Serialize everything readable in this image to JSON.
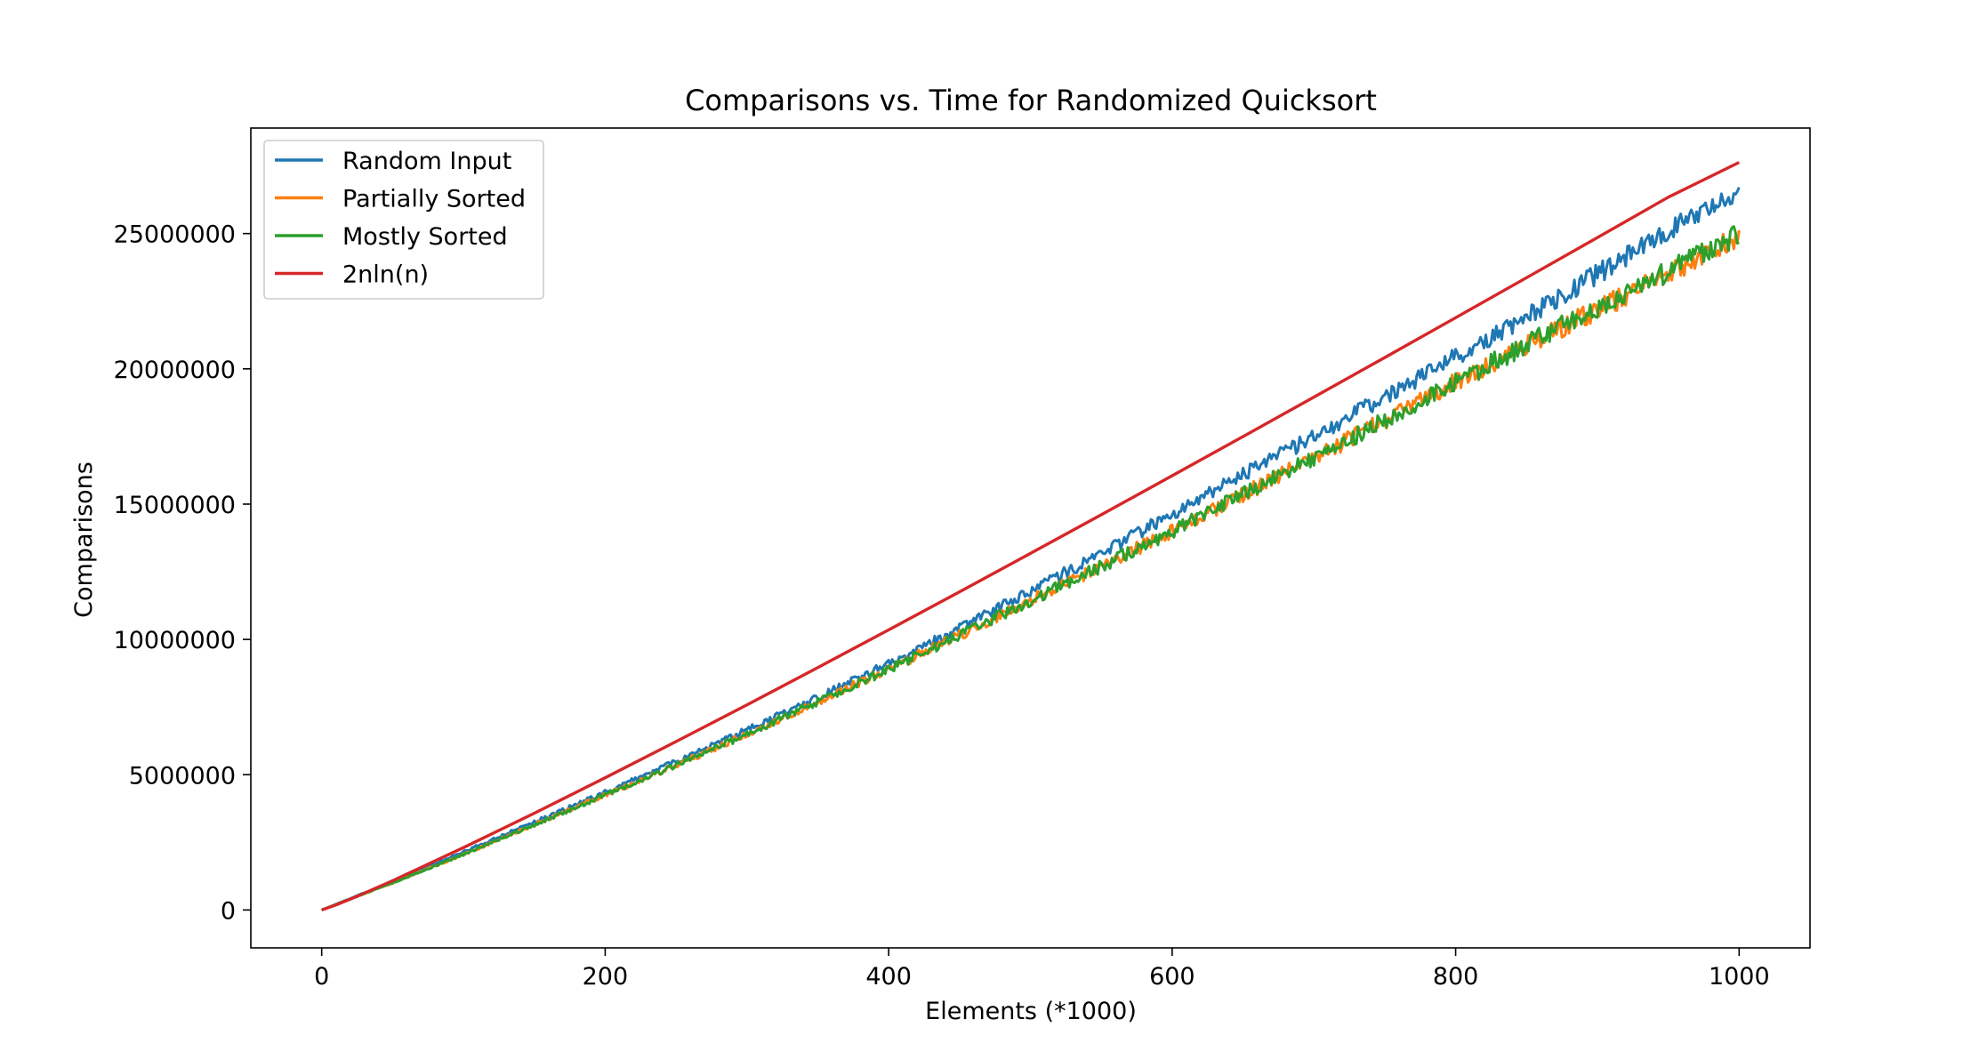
{
  "chart_data": {
    "type": "line",
    "title": "Comparisons vs. Time for Randomized Quicksort",
    "xlabel": "Elements (*1000)",
    "ylabel": "Comparisons",
    "xlim": [
      -50,
      1050
    ],
    "ylim": [
      -1400000,
      28900000
    ],
    "xticks": [
      0,
      200,
      400,
      600,
      800,
      1000
    ],
    "xtick_labels": [
      "0",
      "200",
      "400",
      "600",
      "800",
      "1000"
    ],
    "yticks": [
      0,
      5000000,
      10000000,
      15000000,
      20000000,
      25000000
    ],
    "ytick_labels": [
      "0",
      "5000000",
      "10000000",
      "15000000",
      "20000000",
      "25000000"
    ],
    "grid": false,
    "legend_position": "top-left",
    "series": [
      {
        "name": "Random Input",
        "color": "#1f77b4",
        "x": [
          0,
          50,
          100,
          150,
          200,
          250,
          300,
          350,
          400,
          450,
          500,
          550,
          600,
          650,
          700,
          750,
          800,
          850,
          900,
          950,
          1000
        ],
        "y": [
          0,
          1050000,
          2150000,
          3250000,
          4350000,
          5500000,
          6650000,
          7850000,
          9100000,
          10400000,
          11800000,
          13150000,
          14650000,
          16100000,
          17500000,
          18950000,
          20450000,
          21900000,
          23500000,
          25100000,
          26650000
        ]
      },
      {
        "name": "Partially Sorted",
        "color": "#ff7f0e",
        "x": [
          0,
          50,
          100,
          150,
          200,
          250,
          300,
          350,
          400,
          450,
          500,
          550,
          600,
          650,
          700,
          750,
          800,
          850,
          900,
          950,
          1000
        ],
        "y": [
          0,
          1000000,
          2050000,
          3150000,
          4250000,
          5350000,
          6500000,
          7700000,
          8900000,
          10150000,
          11450000,
          12700000,
          14000000,
          15350000,
          16700000,
          18100000,
          19500000,
          20900000,
          22200000,
          23500000,
          24950000
        ]
      },
      {
        "name": "Mostly Sorted",
        "color": "#2ca02c",
        "x": [
          0,
          50,
          100,
          150,
          200,
          250,
          300,
          350,
          400,
          450,
          500,
          550,
          600,
          650,
          700,
          750,
          800,
          850,
          900,
          950,
          1000
        ],
        "y": [
          0,
          1000000,
          2050000,
          3150000,
          4250000,
          5350000,
          6500000,
          7700000,
          8900000,
          10150000,
          11450000,
          12700000,
          14000000,
          15350000,
          16700000,
          18100000,
          19500000,
          20900000,
          22250000,
          23600000,
          25000000
        ]
      },
      {
        "name": "2nln(n)",
        "color": "#d62728",
        "x": [
          0,
          10,
          25,
          50,
          100,
          150,
          200,
          250,
          300,
          350,
          400,
          450,
          500,
          550,
          600,
          650,
          700,
          750,
          800,
          850,
          900,
          950,
          1000
        ],
        "y": [
          0,
          184200,
          506500,
          1081900,
          2302600,
          3575900,
          4885800,
          6223000,
          7582100,
          8959600,
          10353000,
          11760000,
          13179000,
          14609000,
          16049000,
          17498000,
          18955000,
          20419000,
          21890000,
          23368000,
          24852000,
          26342000,
          27631000
        ]
      }
    ]
  }
}
